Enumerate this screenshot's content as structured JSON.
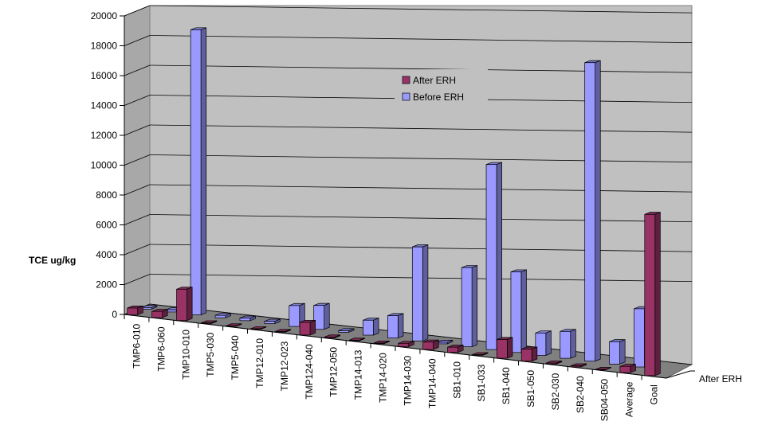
{
  "chart_data": {
    "type": "bar",
    "ylabel": "TCE ug/kg",
    "ylim": [
      0,
      20000
    ],
    "yticks": [
      0,
      2000,
      4000,
      6000,
      8000,
      10000,
      12000,
      14000,
      16000,
      18000,
      20000
    ],
    "categories": [
      "TMP6-010",
      "TMP6-060",
      "TMP10-010",
      "TMP5-030",
      "TMP5-040",
      "TMP12-010",
      "TMP12-023",
      "TMP124-040",
      "TMP12-050",
      "TMP14-013",
      "TMP14-020",
      "TMP14-030",
      "TMP14-040",
      "SB1-010",
      "SB1-033",
      "SB1-040",
      "SB1-050",
      "SB2-030",
      "SB2-040",
      "SB04-050",
      "Average",
      "Goal"
    ],
    "series": [
      {
        "name": "After ERH",
        "color": "#993366",
        "values": [
          450,
          420,
          2100,
          40,
          30,
          30,
          40,
          850,
          60,
          40,
          40,
          220,
          500,
          350,
          40,
          1250,
          800,
          60,
          70,
          20,
          420,
          10800
        ]
      },
      {
        "name": "Before ERH",
        "color": "#9999ff",
        "values": [
          100,
          150,
          19100,
          160,
          170,
          150,
          1400,
          1600,
          100,
          1000,
          1500,
          6300,
          100,
          5300,
          12400,
          5400,
          1500,
          1800,
          20000,
          1500,
          3900,
          0
        ]
      }
    ],
    "legend_position": "center-top",
    "grid": true,
    "depth_axis_label": "After ERH"
  }
}
